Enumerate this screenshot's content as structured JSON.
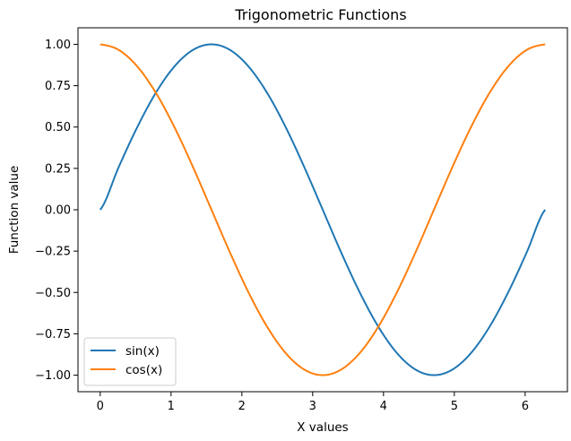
{
  "chart_data": {
    "type": "line",
    "title": "Trigonometric Functions",
    "xlabel": "X values",
    "ylabel": "Function value",
    "xlim": [
      -0.314,
      6.597
    ],
    "ylim": [
      -1.1,
      1.1
    ],
    "grid": false,
    "legend_position": "lower-left",
    "xticks": [
      0,
      1,
      2,
      3,
      4,
      5,
      6
    ],
    "xtick_labels": [
      "0",
      "1",
      "2",
      "3",
      "4",
      "5",
      "6"
    ],
    "yticks": [
      1.0,
      0.75,
      0.5,
      0.25,
      0.0,
      -0.25,
      -0.5,
      -0.75,
      -1.0
    ],
    "ytick_labels": [
      "1.00",
      "0.75",
      "0.50",
      "0.25",
      "0.00",
      "−0.25",
      "−0.50",
      "−0.75",
      "−1.00"
    ],
    "x": [
      0.0,
      0.262,
      0.524,
      0.785,
      1.047,
      1.309,
      1.571,
      1.833,
      2.094,
      2.356,
      2.618,
      2.88,
      3.142,
      3.403,
      3.665,
      3.927,
      4.189,
      4.451,
      4.712,
      4.974,
      5.236,
      5.498,
      5.76,
      6.021,
      6.283
    ],
    "series": [
      {
        "name": "sin(x)",
        "color": "#1f77b4",
        "values": [
          0.0,
          0.259,
          0.5,
          0.707,
          0.866,
          0.966,
          1.0,
          0.966,
          0.866,
          0.707,
          0.5,
          0.259,
          0.0,
          -0.259,
          -0.5,
          -0.707,
          -0.866,
          -0.966,
          -1.0,
          -0.966,
          -0.866,
          -0.707,
          -0.5,
          -0.259,
          0.0
        ]
      },
      {
        "name": "cos(x)",
        "color": "#ff7f0e",
        "values": [
          1.0,
          0.966,
          0.866,
          0.707,
          0.5,
          0.259,
          0.0,
          -0.259,
          -0.5,
          -0.707,
          -0.866,
          -0.966,
          -1.0,
          -0.966,
          -0.866,
          -0.707,
          -0.5,
          -0.259,
          0.0,
          0.259,
          0.5,
          0.707,
          0.866,
          0.966,
          1.0
        ]
      }
    ]
  }
}
